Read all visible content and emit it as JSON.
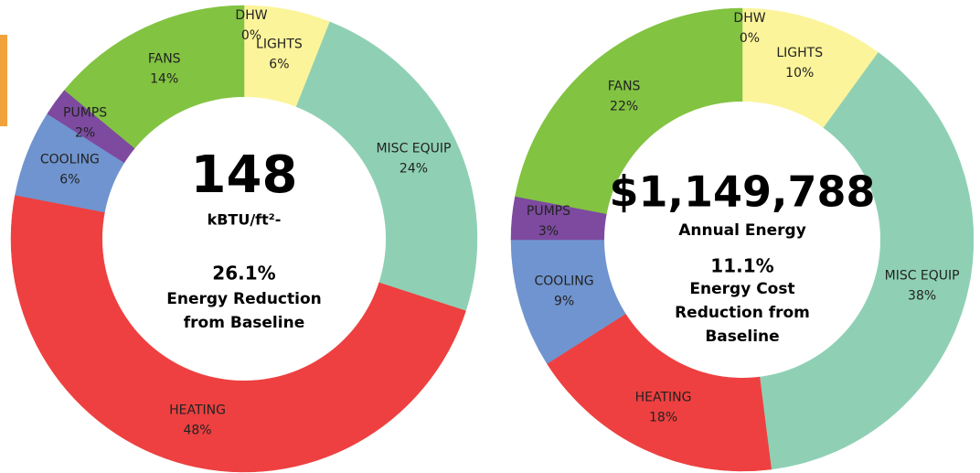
{
  "chart_data": [
    {
      "type": "pie",
      "categories": [
        "DHW",
        "LIGHTS",
        "MISC EQUIP",
        "HEATING",
        "COOLING",
        "PUMPS",
        "FANS"
      ],
      "values": [
        0,
        6,
        24,
        48,
        6,
        2,
        14
      ],
      "value_labels": [
        "0%",
        "6%",
        "24%",
        "48%",
        "6%",
        "2%",
        "14%"
      ],
      "colors": [
        "#e8743b",
        "#fbf49a",
        "#8fd0b5",
        "#ee4040",
        "#7094cf",
        "#7d4a9f",
        "#82c341"
      ],
      "center_text": [
        "148",
        "kBTU/ft²-",
        "26.1%",
        "Energy Reduction",
        "from Baseline"
      ]
    },
    {
      "type": "pie",
      "categories": [
        "DHW",
        "LIGHTS",
        "MISC EQUIP",
        "HEATING",
        "COOLING",
        "PUMPS",
        "FANS"
      ],
      "values": [
        0,
        10,
        38,
        18,
        9,
        3,
        22
      ],
      "value_labels": [
        "0%",
        "10%",
        "38%",
        "18%",
        "9%",
        "3%",
        "22%"
      ],
      "colors": [
        "#e8743b",
        "#fbf49a",
        "#8fd0b5",
        "#ee4040",
        "#7094cf",
        "#7d4a9f",
        "#82c341"
      ],
      "center_text": [
        "$1,149,788",
        "Annual Energy",
        "11.1%",
        "Energy Cost",
        "Reduction from",
        "Baseline"
      ]
    }
  ]
}
